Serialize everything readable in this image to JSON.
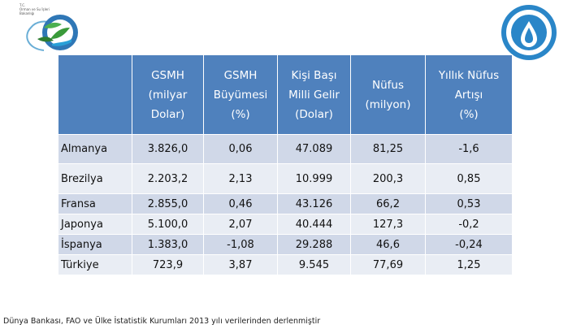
{
  "logos": {
    "left_text": [
      "T.C.",
      "Orman ve Su İşleri",
      "Bakanlığı"
    ]
  },
  "table": {
    "headers": [
      [],
      [
        "GSMH",
        "(milyar",
        "Dolar)"
      ],
      [
        "GSMH",
        "Büyümesi",
        "(%)"
      ],
      [
        "Kişi Başı",
        "Milli Gelir",
        "(Dolar)"
      ],
      [
        "Nüfus",
        "(milyon)"
      ],
      [
        "Yıllık Nüfus Artışı",
        "(%)"
      ]
    ],
    "rows": [
      [
        "Almanya",
        "3.826,0",
        "0,06",
        "47.089",
        "81,25",
        "-1,6"
      ],
      [
        "Brezilya",
        "2.203,2",
        "2,13",
        "10.999",
        "200,3",
        "0,85"
      ],
      [
        "Fransa",
        "2.855,0",
        "0,46",
        "43.126",
        "66,2",
        "0,53"
      ],
      [
        "Japonya",
        "5.100,0",
        "2,07",
        "40.444",
        "127,3",
        "-0,2"
      ],
      [
        "İspanya",
        "1.383,0",
        "-1,08",
        "29.288",
        "46,6",
        "-0,24"
      ],
      [
        "Türkiye",
        "723,9",
        "3,87",
        "9.545",
        "77,69",
        "1,25"
      ]
    ]
  },
  "footnote": "Dünya Bankası, FAO ve Ülke İstatistik Kurumları 2013 yılı verilerinden derlenmiştir",
  "colors": {
    "header_bg": "#4f81bd",
    "row_odd": "#d0d8e8",
    "row_even": "#e9edf4"
  }
}
